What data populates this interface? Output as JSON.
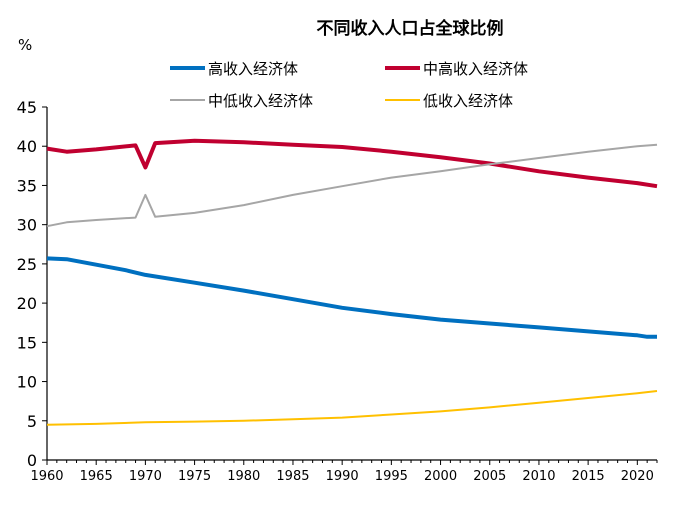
{
  "chart_data": {
    "type": "line",
    "title": "不同收入人口占全球比例",
    "ylabel": "%",
    "xlabel": "",
    "xlim": [
      1960,
      2022
    ],
    "ylim": [
      0,
      45
    ],
    "x_ticks": [
      1960,
      1965,
      1970,
      1975,
      1980,
      1985,
      1990,
      1995,
      2000,
      2005,
      2010,
      2015,
      2020
    ],
    "y_ticks": [
      0,
      5,
      10,
      15,
      20,
      25,
      30,
      35,
      40,
      45
    ],
    "grid": false,
    "legend": "top",
    "series": [
      {
        "name": "高收入经济体",
        "color": "#0070C0",
        "x": [
          1960,
          1962,
          1965,
          1968,
          1970,
          1975,
          1980,
          1985,
          1990,
          1995,
          2000,
          2005,
          2010,
          2015,
          2020,
          2021,
          2022
        ],
        "y": [
          25.7,
          25.6,
          24.9,
          24.2,
          23.6,
          22.6,
          21.6,
          20.5,
          19.4,
          18.6,
          17.9,
          17.4,
          16.9,
          16.4,
          15.9,
          15.7,
          15.7
        ]
      },
      {
        "name": "中高收入经济体",
        "color": "#C00030",
        "x": [
          1960,
          1962,
          1965,
          1969,
          1970,
          1971,
          1975,
          1980,
          1985,
          1990,
          1995,
          2000,
          2005,
          2010,
          2015,
          2020,
          2022
        ],
        "y": [
          39.7,
          39.3,
          39.6,
          40.1,
          37.3,
          40.4,
          40.7,
          40.5,
          40.2,
          39.9,
          39.3,
          38.6,
          37.8,
          36.8,
          36.0,
          35.3,
          34.9
        ]
      },
      {
        "name": "中低收入经济体",
        "color": "#A6A6A6",
        "x": [
          1960,
          1962,
          1965,
          1969,
          1970,
          1971,
          1975,
          1980,
          1985,
          1990,
          1995,
          2000,
          2005,
          2010,
          2015,
          2020,
          2022
        ],
        "y": [
          29.8,
          30.3,
          30.6,
          30.9,
          33.8,
          31.0,
          31.5,
          32.5,
          33.8,
          34.9,
          36.0,
          36.8,
          37.7,
          38.5,
          39.3,
          40.0,
          40.2
        ]
      },
      {
        "name": "低收入经济体",
        "color": "#FFC000",
        "x": [
          1960,
          1965,
          1970,
          1975,
          1980,
          1985,
          1990,
          1995,
          2000,
          2005,
          2010,
          2015,
          2020,
          2022
        ],
        "y": [
          4.5,
          4.6,
          4.8,
          4.9,
          5.0,
          5.2,
          5.4,
          5.8,
          6.2,
          6.7,
          7.3,
          7.9,
          8.5,
          8.8
        ]
      }
    ]
  }
}
